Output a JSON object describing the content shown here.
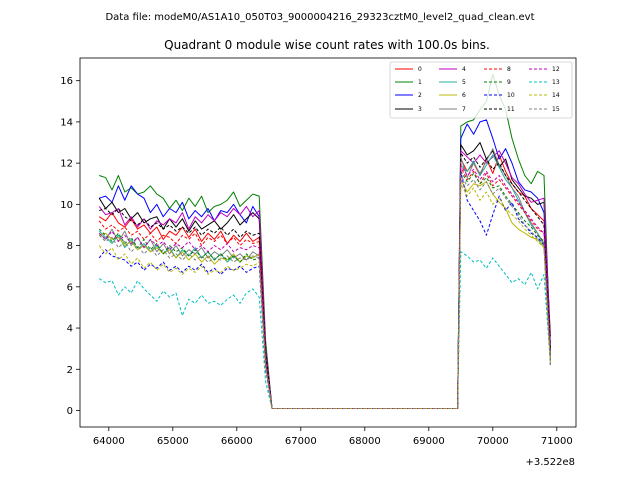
{
  "header": {
    "file_line": "Data file: modeM0/AS1A10_050T03_9000004216_29323cztM0_level2_quad_clean.evt"
  },
  "chart_data": {
    "type": "line",
    "title": "Quadrant 0 module wise count rates with 100.0s bins.",
    "xlabel": "",
    "ylabel": "",
    "x_offset_label": "+3.522e8",
    "xlim": [
      63550,
      71300
    ],
    "ylim": [
      -0.8,
      17.1
    ],
    "xticks": [
      64000,
      65000,
      66000,
      67000,
      68000,
      69000,
      70000,
      71000
    ],
    "xtick_labels": [
      "64000",
      "65000",
      "66000",
      "67000",
      "68000",
      "69000",
      "70000",
      "71000"
    ],
    "yticks": [
      0,
      2,
      4,
      6,
      8,
      10,
      12,
      14,
      16
    ],
    "ytick_labels": [
      "0",
      "2",
      "4",
      "6",
      "8",
      "10",
      "12",
      "14",
      "16"
    ],
    "legend_position": "top-right",
    "x_segments": [
      {
        "start": 63850,
        "step": 100,
        "count": 26
      },
      {
        "start": 69500,
        "step": 100,
        "count": 15
      }
    ],
    "gap_x": [
      66450,
      66550,
      69450
    ],
    "series": [
      {
        "name": "0",
        "color": "#ff0000",
        "dash": "solid",
        "first": [
          9.4,
          9.2,
          9.6,
          9.1,
          8.9,
          9.3,
          8.8,
          9.0,
          8.6,
          8.9,
          8.3,
          8.7,
          8.5,
          8.9,
          8.4,
          8.8,
          8.2,
          8.6,
          8.3,
          8.7,
          8.1,
          8.5,
          8.2,
          8.6,
          8.2,
          8.4
        ],
        "second": [
          12.2,
          11.6,
          12.0,
          11.4,
          12.2,
          11.5,
          12.4,
          11.6,
          11.0,
          10.6,
          10.4,
          9.8,
          9.5,
          9.2,
          2.9
        ],
        "gap": [
          2.6,
          0.1,
          0.1
        ]
      },
      {
        "name": "1",
        "color": "#008000",
        "dash": "solid",
        "first": [
          11.4,
          11.3,
          10.7,
          11.4,
          10.6,
          10.8,
          10.5,
          10.6,
          10.9,
          10.5,
          10.3,
          9.8,
          10.2,
          9.7,
          10.3,
          9.9,
          10.4,
          9.6,
          9.9,
          10.0,
          10.2,
          10.6,
          9.9,
          10.2,
          10.5,
          10.4
        ],
        "second": [
          13.8,
          14.0,
          14.1,
          14.6,
          15.0,
          16.3,
          15.3,
          14.6,
          13.2,
          12.2,
          11.4,
          11.0,
          11.6,
          11.4,
          2.9
        ],
        "gap": [
          3.4,
          0.1,
          0.1
        ]
      },
      {
        "name": "2",
        "color": "#0000ff",
        "dash": "solid",
        "first": [
          10.3,
          10.4,
          10.1,
          10.9,
          10.2,
          10.9,
          10.5,
          10.3,
          9.6,
          10.0,
          9.4,
          9.8,
          9.6,
          10.1,
          9.3,
          9.7,
          9.4,
          9.8,
          9.2,
          9.7,
          9.6,
          10.0,
          9.5,
          9.1,
          9.9,
          9.4
        ],
        "second": [
          13.2,
          13.9,
          13.4,
          14.0,
          14.1,
          13.2,
          12.2,
          12.7,
          12.0,
          11.1,
          10.7,
          10.6,
          10.3,
          9.6,
          2.7
        ],
        "gap": [
          3.0,
          0.1,
          0.1
        ]
      },
      {
        "name": "3",
        "color": "#000000",
        "dash": "solid",
        "first": [
          10.3,
          9.8,
          10.1,
          9.6,
          9.8,
          9.3,
          9.6,
          9.1,
          9.3,
          9.4,
          8.8,
          9.3,
          8.9,
          9.3,
          8.7,
          9.2,
          8.8,
          9.0,
          9.2,
          8.8,
          9.1,
          9.5,
          9.0,
          9.3,
          9.6,
          9.3
        ],
        "second": [
          12.9,
          12.4,
          12.6,
          13.0,
          12.2,
          12.6,
          11.8,
          12.2,
          11.2,
          10.8,
          10.4,
          10.3,
          10.0,
          10.1,
          3.6
        ],
        "gap": [
          3.0,
          0.1,
          0.1
        ]
      },
      {
        "name": "4",
        "color": "#c000c0",
        "dash": "solid",
        "first": [
          9.9,
          9.5,
          9.6,
          9.8,
          9.0,
          9.4,
          8.9,
          9.3,
          8.8,
          9.2,
          9.0,
          9.3,
          9.1,
          9.6,
          8.8,
          9.4,
          9.1,
          9.5,
          9.2,
          9.6,
          9.4,
          9.8,
          9.5,
          9.9,
          9.4,
          9.7
        ],
        "second": [
          12.6,
          12.3,
          12.0,
          12.4,
          12.0,
          12.3,
          12.6,
          12.0,
          11.3,
          11.0,
          10.5,
          10.1,
          10.2,
          10.3,
          3.2
        ],
        "gap": [
          3.0,
          0.1,
          0.1
        ]
      },
      {
        "name": "5",
        "color": "#20b0a0",
        "dash": "solid",
        "first": [
          8.7,
          8.4,
          8.1,
          8.5,
          7.9,
          8.3,
          7.8,
          8.1,
          7.7,
          8.0,
          7.6,
          7.9,
          7.4,
          7.8,
          7.5,
          7.9,
          7.4,
          7.7,
          7.3,
          7.6,
          7.2,
          7.5,
          7.2,
          7.5,
          7.4,
          7.6
        ],
        "second": [
          11.9,
          11.6,
          12.1,
          11.4,
          11.9,
          12.4,
          11.8,
          11.2,
          10.8,
          10.2,
          9.6,
          9.0,
          8.6,
          8.0,
          2.6
        ],
        "gap": [
          2.2,
          0.1,
          0.1
        ]
      },
      {
        "name": "6",
        "color": "#b8b800",
        "dash": "solid",
        "first": [
          8.5,
          8.6,
          8.3,
          8.4,
          8.0,
          8.2,
          7.8,
          8.0,
          7.7,
          7.9,
          7.6,
          7.8,
          7.4,
          7.7,
          7.3,
          7.6,
          7.2,
          7.5,
          7.1,
          7.4,
          7.3,
          7.6,
          7.2,
          7.5,
          7.4,
          7.6
        ],
        "second": [
          11.2,
          10.6,
          11.0,
          10.9,
          11.1,
          10.5,
          10.1,
          9.8,
          9.1,
          8.8,
          8.6,
          8.4,
          8.3,
          7.9,
          2.5
        ],
        "gap": [
          2.2,
          0.1,
          0.1
        ]
      },
      {
        "name": "7",
        "color": "#808080",
        "dash": "solid",
        "first": [
          8.6,
          8.3,
          8.8,
          8.2,
          8.7,
          8.0,
          8.4,
          7.9,
          8.3,
          7.7,
          8.1,
          7.6,
          8.0,
          7.5,
          7.8,
          7.6,
          7.9,
          7.4,
          7.7,
          7.5,
          7.8,
          7.4,
          7.6,
          7.3,
          7.7,
          7.5
        ],
        "second": [
          12.3,
          11.3,
          12.0,
          11.5,
          12.1,
          12.7,
          11.9,
          11.4,
          10.8,
          10.4,
          9.6,
          9.1,
          8.6,
          8.1,
          2.4
        ],
        "gap": [
          2.5,
          0.1,
          0.1
        ]
      },
      {
        "name": "8",
        "color": "#ff0000",
        "dash": "dashed",
        "first": [
          9.2,
          8.8,
          9.0,
          8.7,
          8.9,
          8.5,
          8.7,
          8.3,
          8.6,
          8.2,
          8.5,
          8.4,
          8.1,
          8.5,
          8.3,
          8.6,
          8.0,
          8.4,
          8.2,
          8.5,
          8.1,
          8.4,
          8.0,
          8.3,
          8.1,
          8.2
        ],
        "second": [
          11.8,
          11.2,
          11.6,
          11.0,
          11.5,
          10.9,
          11.2,
          10.8,
          10.4,
          10.0,
          9.6,
          9.2,
          8.8,
          8.6,
          2.6
        ],
        "gap": [
          2.4,
          0.1,
          0.1
        ]
      },
      {
        "name": "9",
        "color": "#008000",
        "dash": "dashed",
        "first": [
          8.8,
          8.5,
          8.2,
          8.6,
          8.1,
          8.4,
          7.9,
          8.3,
          7.8,
          8.1,
          7.6,
          8.0,
          7.7,
          7.9,
          7.5,
          7.8,
          7.4,
          7.7,
          7.3,
          7.6,
          7.3,
          7.5,
          7.2,
          7.6,
          7.3,
          7.4
        ],
        "second": [
          11.6,
          11.1,
          11.5,
          11.0,
          11.3,
          10.8,
          10.9,
          10.4,
          10.0,
          9.6,
          9.2,
          8.9,
          8.5,
          8.2,
          2.4
        ],
        "gap": [
          2.2,
          0.1,
          0.1
        ]
      },
      {
        "name": "10",
        "color": "#0000ff",
        "dash": "dashed",
        "first": [
          7.4,
          7.8,
          7.5,
          7.4,
          7.3,
          7.0,
          7.2,
          6.8,
          7.1,
          6.9,
          7.2,
          6.8,
          7.0,
          6.7,
          7.0,
          6.8,
          7.1,
          6.7,
          6.9,
          6.6,
          6.9,
          6.8,
          7.0,
          6.7,
          6.9,
          7.0
        ],
        "second": [
          11.6,
          10.2,
          9.7,
          9.2,
          8.5,
          9.5,
          10.4,
          9.7,
          10.1,
          9.3,
          9.0,
          8.6,
          8.4,
          8.0,
          2.2
        ],
        "gap": [
          2.0,
          0.1,
          0.1
        ]
      },
      {
        "name": "11",
        "color": "#000000",
        "dash": "dashed",
        "first": [
          9.7,
          9.8,
          9.5,
          9.8,
          9.4,
          9.2,
          9.0,
          9.3,
          8.9,
          9.1,
          8.8,
          9.0,
          8.7,
          8.9,
          8.6,
          8.9,
          8.5,
          8.8,
          8.6,
          8.9,
          8.5,
          8.8,
          8.4,
          8.7,
          8.5,
          8.6
        ],
        "second": [
          12.5,
          12.0,
          12.3,
          11.8,
          12.2,
          11.7,
          12.0,
          11.4,
          11.0,
          10.6,
          10.2,
          9.8,
          9.4,
          9.0,
          3.0
        ],
        "gap": [
          2.8,
          0.1,
          0.1
        ]
      },
      {
        "name": "12",
        "color": "#c000c0",
        "dash": "dashed",
        "first": [
          8.6,
          8.3,
          8.7,
          8.2,
          8.5,
          8.1,
          8.4,
          7.9,
          8.3,
          8.0,
          8.2,
          7.8,
          8.1,
          7.9,
          8.2,
          7.8,
          8.0,
          7.7,
          8.0,
          7.8,
          8.1,
          7.7,
          7.9,
          7.8,
          8.0,
          7.9
        ],
        "second": [
          11.9,
          11.4,
          11.7,
          11.2,
          11.6,
          11.1,
          11.4,
          10.9,
          10.5,
          10.1,
          9.7,
          9.3,
          8.9,
          8.6,
          2.5
        ],
        "gap": [
          2.3,
          0.1,
          0.1
        ]
      },
      {
        "name": "13",
        "color": "#00c0c0",
        "dash": "dashed",
        "first": [
          6.4,
          6.2,
          6.3,
          5.6,
          6.0,
          5.7,
          6.3,
          5.9,
          5.6,
          5.3,
          5.8,
          5.5,
          5.7,
          4.6,
          5.4,
          5.2,
          5.6,
          5.2,
          5.3,
          5.1,
          5.4,
          5.6,
          5.2,
          5.7,
          5.9,
          5.5
        ],
        "second": [
          7.7,
          7.5,
          7.2,
          7.3,
          6.9,
          7.4,
          7.0,
          6.6,
          6.2,
          6.4,
          6.1,
          6.7,
          5.9,
          6.6,
          2.3
        ],
        "gap": [
          1.4,
          0.1,
          0.1
        ]
      },
      {
        "name": "14",
        "color": "#b8b800",
        "dash": "dashed",
        "first": [
          8.0,
          7.6,
          7.9,
          7.3,
          7.6,
          7.1,
          7.4,
          6.9,
          7.2,
          6.8,
          7.1,
          6.7,
          6.9,
          6.6,
          6.9,
          6.7,
          7.0,
          6.6,
          6.8,
          6.7,
          7.0,
          6.8,
          6.9,
          7.1,
          7.0,
          7.2
        ],
        "second": [
          11.0,
          10.4,
          10.8,
          10.2,
          10.6,
          10.0,
          10.3,
          9.8,
          9.5,
          9.2,
          8.8,
          8.5,
          8.2,
          7.9,
          2.3
        ],
        "gap": [
          2.1,
          0.1,
          0.1
        ]
      },
      {
        "name": "15",
        "color": "#808080",
        "dash": "dashed",
        "first": [
          8.5,
          8.2,
          8.4,
          7.9,
          8.2,
          7.7,
          8.0,
          7.6,
          7.9,
          7.5,
          7.8,
          7.4,
          7.6,
          7.3,
          7.6,
          7.3,
          7.5,
          7.2,
          7.4,
          7.3,
          7.5,
          7.2,
          7.4,
          7.3,
          7.5,
          7.4
        ],
        "second": [
          11.4,
          10.9,
          11.2,
          10.7,
          11.1,
          10.5,
          10.8,
          10.3,
          9.9,
          9.5,
          9.0,
          8.7,
          8.3,
          8.0,
          2.2
        ],
        "gap": [
          2.2,
          0.1,
          0.1
        ]
      }
    ]
  }
}
